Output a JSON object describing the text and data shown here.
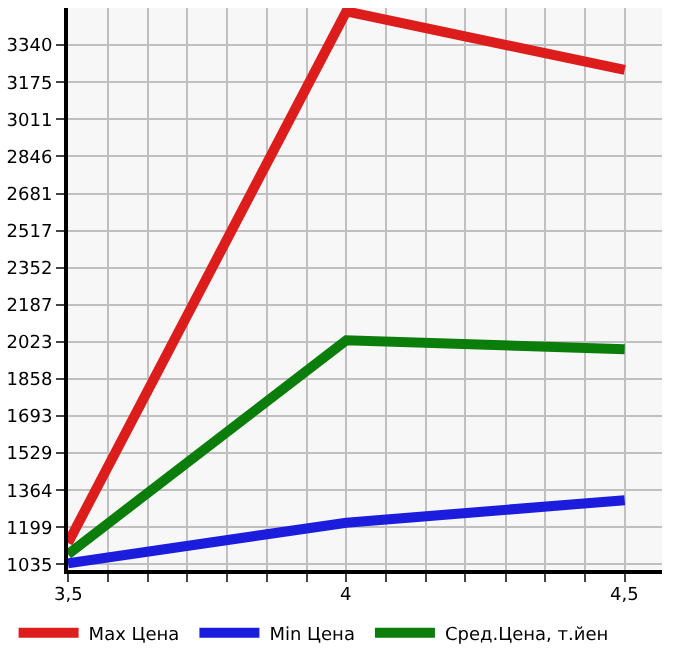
{
  "chart_data": {
    "type": "line",
    "x": [
      3.5,
      4,
      4.5
    ],
    "series": [
      {
        "name": "Max Цена",
        "color": "#dd1c1c",
        "values": [
          1130,
          3490,
          3230
        ]
      },
      {
        "name": "Min Цена",
        "color": "#1c1cdd",
        "values": [
          1040,
          1220,
          1320
        ]
      },
      {
        "name": "Сред.Цена, т.йен",
        "color": "#0a7d0a",
        "values": [
          1080,
          2030,
          1990
        ]
      }
    ],
    "xlim": [
      3.5,
      4.567
    ],
    "ylim": [
      1010,
      3505
    ],
    "xticks": [
      {
        "value": 3.5,
        "label": "3,5"
      },
      {
        "value": 3.571,
        "label": null
      },
      {
        "value": 3.643,
        "label": null
      },
      {
        "value": 3.714,
        "label": null
      },
      {
        "value": 3.786,
        "label": null
      },
      {
        "value": 3.857,
        "label": null
      },
      {
        "value": 3.929,
        "label": null
      },
      {
        "value": 4,
        "label": "4"
      },
      {
        "value": 4.071,
        "label": null
      },
      {
        "value": 4.143,
        "label": null
      },
      {
        "value": 4.214,
        "label": null
      },
      {
        "value": 4.286,
        "label": null
      },
      {
        "value": 4.357,
        "label": null
      },
      {
        "value": 4.429,
        "label": null
      },
      {
        "value": 4.5,
        "label": "4,5"
      }
    ],
    "yticks": [
      1035,
      1199,
      1364,
      1529,
      1693,
      1858,
      2023,
      2187,
      2352,
      2517,
      2681,
      2846,
      3011,
      3175,
      3340
    ],
    "grid": true,
    "legend": "bottom",
    "marker": "none",
    "line_style": "solid"
  }
}
